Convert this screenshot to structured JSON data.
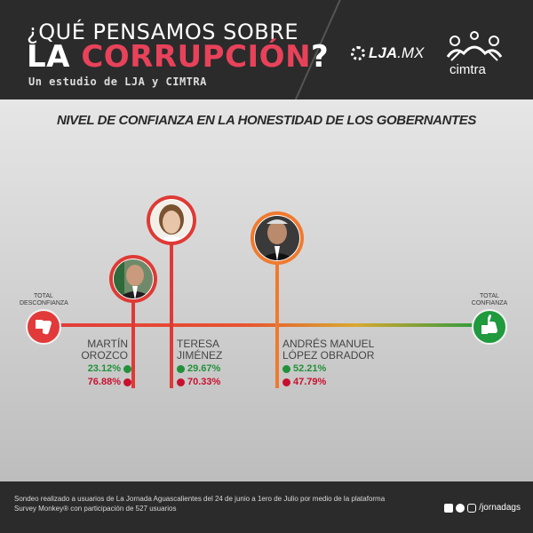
{
  "header": {
    "title_line1": "¿QUÉ PENSAMOS SOBRE",
    "title_line2_a": "LA ",
    "title_line2_b": "CORRUPCIÓN",
    "title_line2_c": "?",
    "subtitle": "Un estudio de LJA y CIMTRA",
    "lja_logo": "LJA",
    "lja_logo_suffix": ".MX",
    "cimtra_logo": "cimtra"
  },
  "heading": "NIVEL DE CONFIANZA EN LA HONESTIDAD DE LOS GOBERNANTES",
  "scale": {
    "left_label": "TOTAL\nDESCONFIANZA",
    "right_label": "TOTAL\nCONFIANZA",
    "left_color": "#e23a3a",
    "right_color": "#1f9a3d"
  },
  "people": [
    {
      "name_line1": "MARTÍN",
      "name_line2": "OROZCO",
      "confidence": "23.12%",
      "distrust": "76.88%",
      "color": "#df3a35",
      "icon": "avatar-martin"
    },
    {
      "name_line1": "TERESA",
      "name_line2": "JIMÉNEZ",
      "confidence": "29.67%",
      "distrust": "70.33%",
      "color": "#df3a35",
      "icon": "avatar-teresa"
    },
    {
      "name_line1": "ANDRÉS MANUEL",
      "name_line2": "LÓPEZ OBRADOR",
      "confidence": "52.21%",
      "distrust": "47.79%",
      "color": "#ef7a2f",
      "icon": "avatar-amlo"
    }
  ],
  "footer": {
    "note_line1": "Sondeo realizado a usuarios de La Jornada Aguascalientes del 24 de junio a 1ero de Julio por medio de la plataforma",
    "note_line2": "Survey Monkey® con participación de 527 usuarios",
    "social_handle": "/jornadags"
  }
}
